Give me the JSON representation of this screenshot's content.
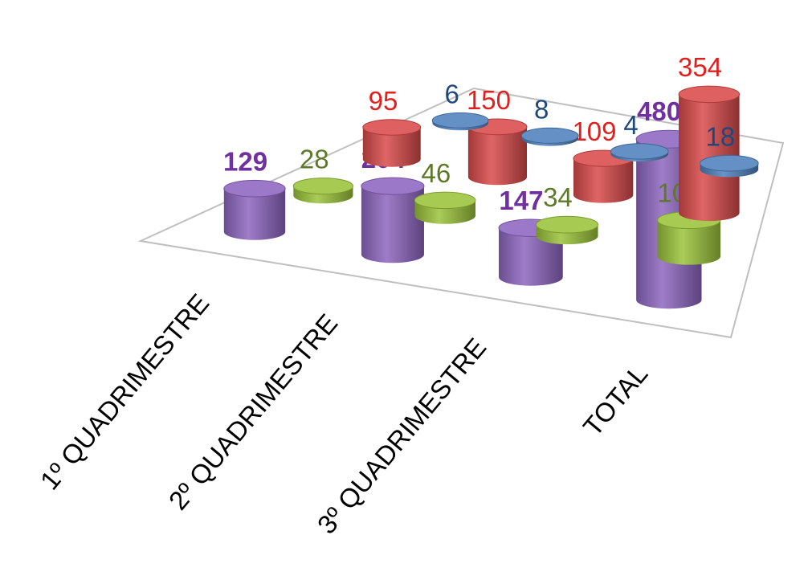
{
  "chart_data": {
    "type": "bar",
    "style": "3d-cylinder",
    "categories": [
      "1º QUADRIMESTRE",
      "2º QUADRIMESTRE",
      "3º QUADRIMESTRE",
      "TOTAL"
    ],
    "series": [
      {
        "values": [
          6,
          8,
          4,
          18
        ],
        "color": "#4f81bd",
        "label_color": "#1f497d",
        "label_bold": false
      },
      {
        "values": [
          95,
          150,
          109,
          354
        ],
        "color": "#d94a4a",
        "label_color": "#e0201f",
        "label_bold": false
      },
      {
        "values": [
          28,
          46,
          34,
          108
        ],
        "color": "#9bc33a",
        "label_color": "#5e7a29",
        "label_bold": false
      },
      {
        "values": [
          129,
          204,
          147,
          480
        ],
        "color": "#8e66c0",
        "label_color": "#7030a0",
        "label_bold": true
      }
    ],
    "grid": false,
    "legend": "none"
  }
}
